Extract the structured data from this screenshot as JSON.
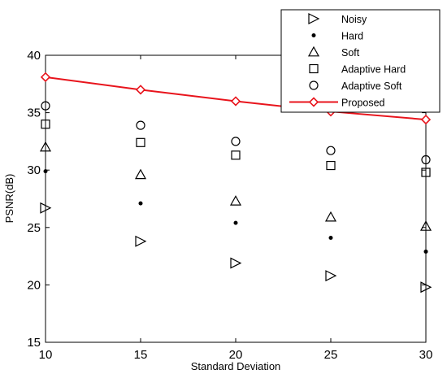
{
  "chart_data": {
    "type": "scatter",
    "xlabel": "Standard Deviation",
    "ylabel": "PSNR(dB)",
    "xlim": [
      10,
      30
    ],
    "ylim": [
      15,
      40
    ],
    "xticks": [
      10,
      15,
      20,
      25,
      30
    ],
    "yticks": [
      15,
      20,
      25,
      30,
      35,
      40
    ],
    "grid": false,
    "legend_position": "top-right",
    "x": [
      10,
      15,
      20,
      25,
      30
    ],
    "series": [
      {
        "name": "Noisy",
        "marker": "triangle-right",
        "color": "#000000",
        "line": false,
        "values": [
          26.7,
          23.8,
          21.9,
          20.8,
          19.8
        ]
      },
      {
        "name": "Hard",
        "marker": "dot",
        "color": "#000000",
        "line": false,
        "values": [
          29.9,
          27.1,
          25.4,
          24.1,
          22.9
        ]
      },
      {
        "name": "Soft",
        "marker": "triangle-up",
        "color": "#000000",
        "line": false,
        "values": [
          32.0,
          29.6,
          27.3,
          25.9,
          25.1
        ]
      },
      {
        "name": "Adaptive Hard",
        "marker": "square",
        "color": "#000000",
        "line": false,
        "values": [
          34.0,
          32.4,
          31.3,
          30.4,
          29.8
        ]
      },
      {
        "name": "Adaptive Soft",
        "marker": "circle",
        "color": "#000000",
        "line": false,
        "values": [
          35.6,
          33.9,
          32.5,
          31.7,
          30.9
        ]
      },
      {
        "name": "Proposed",
        "marker": "diamond",
        "color": "#e8141c",
        "line": true,
        "values": [
          38.1,
          37.0,
          36.0,
          35.1,
          34.4
        ]
      }
    ]
  }
}
